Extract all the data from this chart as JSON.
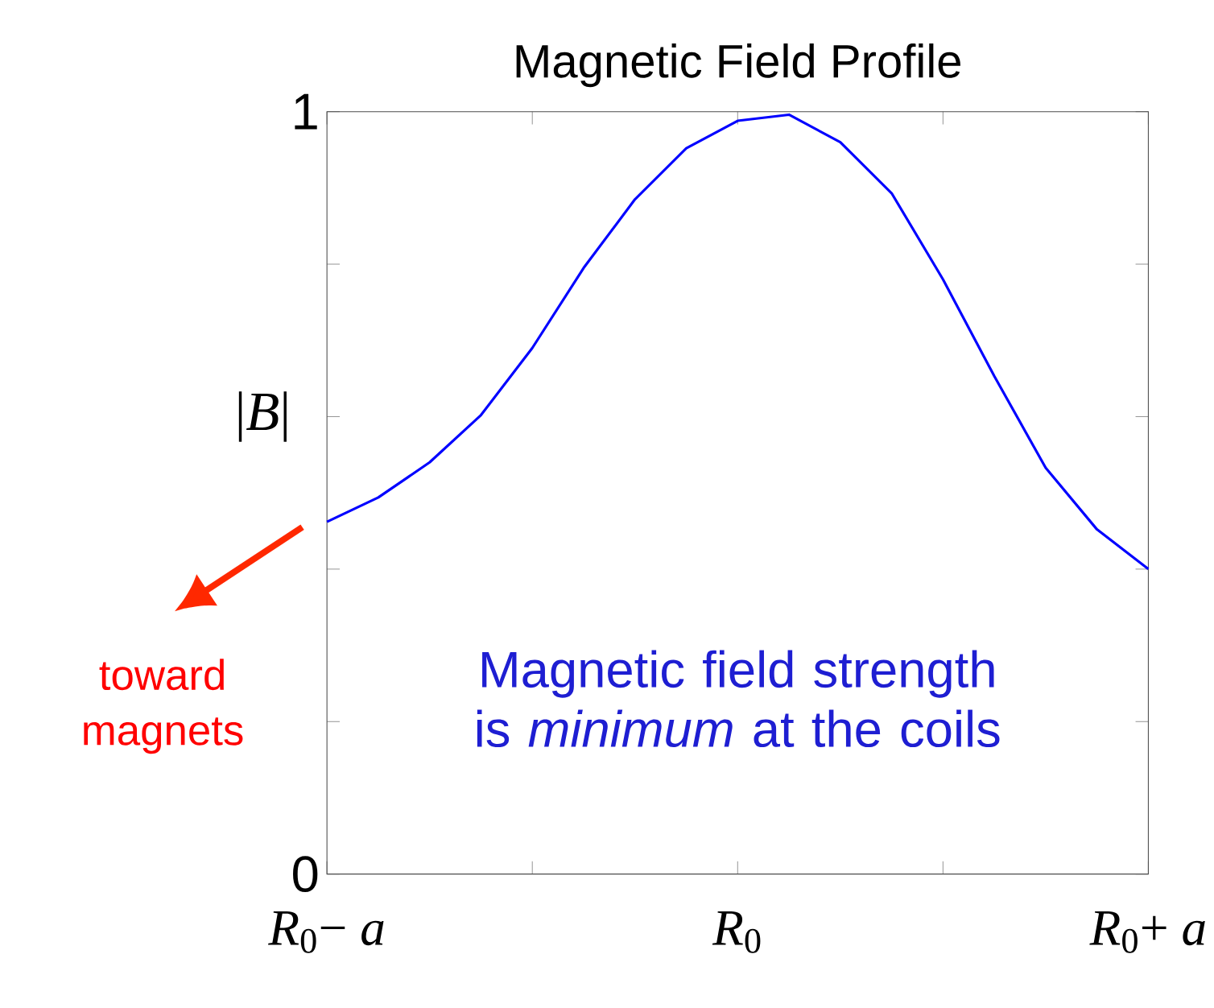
{
  "chart_data": {
    "type": "line",
    "title": "Magnetic Field Profile",
    "ylabel": "|*B*|",
    "categories": [
      "*R*$_{0}$− *a*",
      null,
      null,
      null,
      null,
      null,
      null,
      null,
      "*R*$_{0}$",
      null,
      null,
      null,
      null,
      null,
      null,
      null,
      "*R*$_{0}$+ *a*"
    ],
    "series": [
      {
        "color": "#0000ff",
        "values": [
          0.462,
          0.494,
          0.54,
          0.602,
          0.69,
          0.795,
          0.885,
          0.952,
          0.988,
          0.996,
          0.96,
          0.893,
          0.78,
          0.653,
          0.533,
          0.452,
          0.4
        ]
      }
    ],
    "ylim": [
      0,
      1
    ],
    "yticks": [
      0,
      {
        "value": 0.2,
        "label": null
      },
      {
        "value": 0.4,
        "label": null
      },
      {
        "value": 0.6,
        "label": null
      },
      {
        "value": 0.8,
        "label": null
      },
      1
    ],
    "annotations": [
      "toward magnets",
      "Magnetic field strength is *minimum* at the coils"
    ]
  }
}
